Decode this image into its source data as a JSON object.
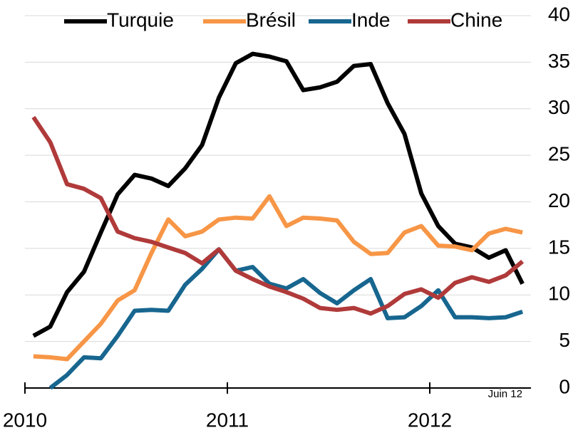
{
  "chart_data": {
    "type": "line",
    "x": [
      2010.042,
      2010.125,
      2010.208,
      2010.292,
      2010.375,
      2010.458,
      2010.542,
      2010.625,
      2010.708,
      2010.792,
      2010.875,
      2010.958,
      2011.042,
      2011.125,
      2011.208,
      2011.292,
      2011.375,
      2011.458,
      2011.542,
      2011.625,
      2011.708,
      2011.792,
      2011.875,
      2011.958,
      2012.042,
      2012.125,
      2012.208,
      2012.292,
      2012.375,
      2012.458
    ],
    "series": [
      {
        "name": "Turquie",
        "color": "#000000",
        "values": [
          5.6,
          6.6,
          10.3,
          12.5,
          16.7,
          20.8,
          22.9,
          22.5,
          21.7,
          23.6,
          26.1,
          31.2,
          34.9,
          35.9,
          35.6,
          35.1,
          32.0,
          32.3,
          32.9,
          34.6,
          34.8,
          30.6,
          27.3,
          20.9,
          17.4,
          15.5,
          15.1,
          14.0,
          14.8,
          11.2
        ]
      },
      {
        "name": "Brésil",
        "color": "#f79646",
        "values": [
          3.4,
          3.3,
          3.1,
          5.0,
          6.9,
          9.4,
          10.5,
          14.5,
          18.1,
          16.3,
          16.8,
          18.1,
          18.3,
          18.2,
          20.6,
          17.4,
          18.3,
          18.2,
          18.0,
          15.7,
          14.4,
          14.5,
          16.7,
          17.4,
          15.3,
          15.2,
          14.8,
          16.6,
          17.1,
          16.7
        ]
      },
      {
        "name": "Inde",
        "color": "#17668f",
        "values": [
          null,
          0,
          1.4,
          3.3,
          3.2,
          5.6,
          8.3,
          8.4,
          8.3,
          11.1,
          12.8,
          14.9,
          12.6,
          13.0,
          11.2,
          10.7,
          11.7,
          10.2,
          9.1,
          10.5,
          11.7,
          7.5,
          7.6,
          8.8,
          10.5,
          7.6,
          7.6,
          7.5,
          7.6,
          8.2
        ]
      },
      {
        "name": "Chine",
        "color": "#b03a3a",
        "values": [
          29.1,
          26.4,
          21.9,
          21.4,
          20.4,
          16.8,
          16.1,
          15.7,
          15.1,
          14.5,
          13.4,
          14.9,
          12.6,
          11.7,
          10.9,
          10.3,
          9.6,
          8.6,
          8.4,
          8.6,
          8.0,
          8.8,
          10.1,
          10.6,
          9.7,
          11.3,
          11.9,
          11.4,
          12.1,
          13.6
        ]
      }
    ],
    "xlim": [
      2010,
      2012.5
    ],
    "xticks": [
      2010,
      2011,
      2012
    ],
    "ylim": [
      0,
      40
    ],
    "yticks": [
      0,
      5,
      10,
      15,
      20,
      25,
      30,
      35,
      40
    ],
    "grid": true,
    "annotation": "Juin 12",
    "legend": "top"
  }
}
